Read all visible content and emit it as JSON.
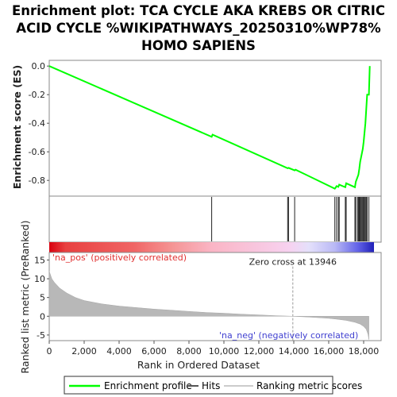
{
  "chart_data": {
    "type": "line",
    "title": [
      "Enrichment plot: TCA CYCLE AKA KREBS OR CITRIC",
      "ACID CYCLE %WIKIPATHWAYS_20250310%WP78%",
      "HOMO SAPIENS"
    ],
    "es_panel": {
      "ylabel": "Enrichment score (ES)",
      "ylim": [
        -0.91,
        0.04
      ],
      "yticks": [
        "0.0",
        "-0.2",
        "-0.4",
        "-0.6",
        "-0.8"
      ],
      "yticks_values": [
        0.0,
        -0.2,
        -0.4,
        -0.6,
        -0.8
      ],
      "series": [
        {
          "name": "Enrichment profile",
          "color": "#00ff00",
          "x": [
            0,
            9300,
            9350,
            13650,
            13700,
            14050,
            14100,
            16350,
            16400,
            16450,
            16550,
            16600,
            16950,
            17000,
            17500,
            17550,
            17700,
            17750,
            17800,
            17850,
            17950,
            18000,
            18100,
            18150,
            18200,
            18300,
            18350
          ],
          "y": [
            0.0,
            -0.495,
            -0.48,
            -0.715,
            -0.712,
            -0.73,
            -0.725,
            -0.858,
            -0.85,
            -0.84,
            -0.845,
            -0.83,
            -0.848,
            -0.82,
            -0.848,
            -0.81,
            -0.76,
            -0.72,
            -0.67,
            -0.64,
            -0.58,
            -0.53,
            -0.4,
            -0.3,
            -0.2,
            -0.2,
            0.0
          ]
        }
      ]
    },
    "hits": {
      "name": "Hits",
      "positions": [
        9300,
        13650,
        13700,
        14050,
        16350,
        16450,
        16550,
        16600,
        16950,
        17000,
        17500,
        17550,
        17650,
        17700,
        17750,
        17800,
        17850,
        17900,
        17950,
        18000,
        18050,
        18100,
        18150,
        18200,
        18300
      ]
    },
    "rank_panel": {
      "ylabel": "Ranked list metric (PreRanked)",
      "xlabel": "Rank in Ordered Dataset",
      "ylim": [
        -6.5,
        17
      ],
      "yticks_values": [
        15,
        10,
        5,
        0,
        -5
      ],
      "yticks": [
        "15",
        "10",
        "5",
        "0",
        "-5"
      ],
      "xlim": [
        0,
        19000
      ],
      "xticks_values": [
        0,
        2000,
        4000,
        6000,
        8000,
        10000,
        12000,
        14000,
        16000,
        18000
      ],
      "xticks": [
        "0",
        "2,000",
        "4,000",
        "6,000",
        "8,000",
        "10,000",
        "12,000",
        "14,000",
        "16,000",
        "18,000"
      ],
      "metric_curve": {
        "x": [
          0,
          150,
          300,
          600,
          1000,
          1500,
          2000,
          3000,
          4000,
          5000,
          6000,
          7000,
          8000,
          9000,
          10000,
          11000,
          12000,
          13000,
          13946,
          15000,
          16000,
          16500,
          17000,
          17500,
          17800,
          18000,
          18150,
          18250,
          18300
        ],
        "y": [
          12,
          10,
          9,
          7.5,
          6.2,
          5.0,
          4.2,
          3.3,
          2.7,
          2.3,
          1.9,
          1.6,
          1.3,
          1.0,
          0.8,
          0.55,
          0.35,
          0.15,
          0.0,
          -0.25,
          -0.55,
          -0.8,
          -1.1,
          -1.6,
          -2.1,
          -2.7,
          -3.5,
          -4.8,
          -6.2
        ]
      },
      "zero_cross_label": "Zero cross at 13946",
      "zero_cross_x": 13946,
      "pos_label": "'na_pos' (positively correlated)",
      "neg_label": "'na_neg' (negatively correlated)",
      "pos_color": "#e84040",
      "neg_color": "#3a3ad0"
    },
    "legend": [
      {
        "label": "Enrichment profile",
        "color": "#00ff00"
      },
      {
        "label": "Hits",
        "color": "#555555"
      },
      {
        "label": "Ranking metric scores",
        "color": "#cccccc"
      }
    ],
    "n_genes": 18300
  }
}
